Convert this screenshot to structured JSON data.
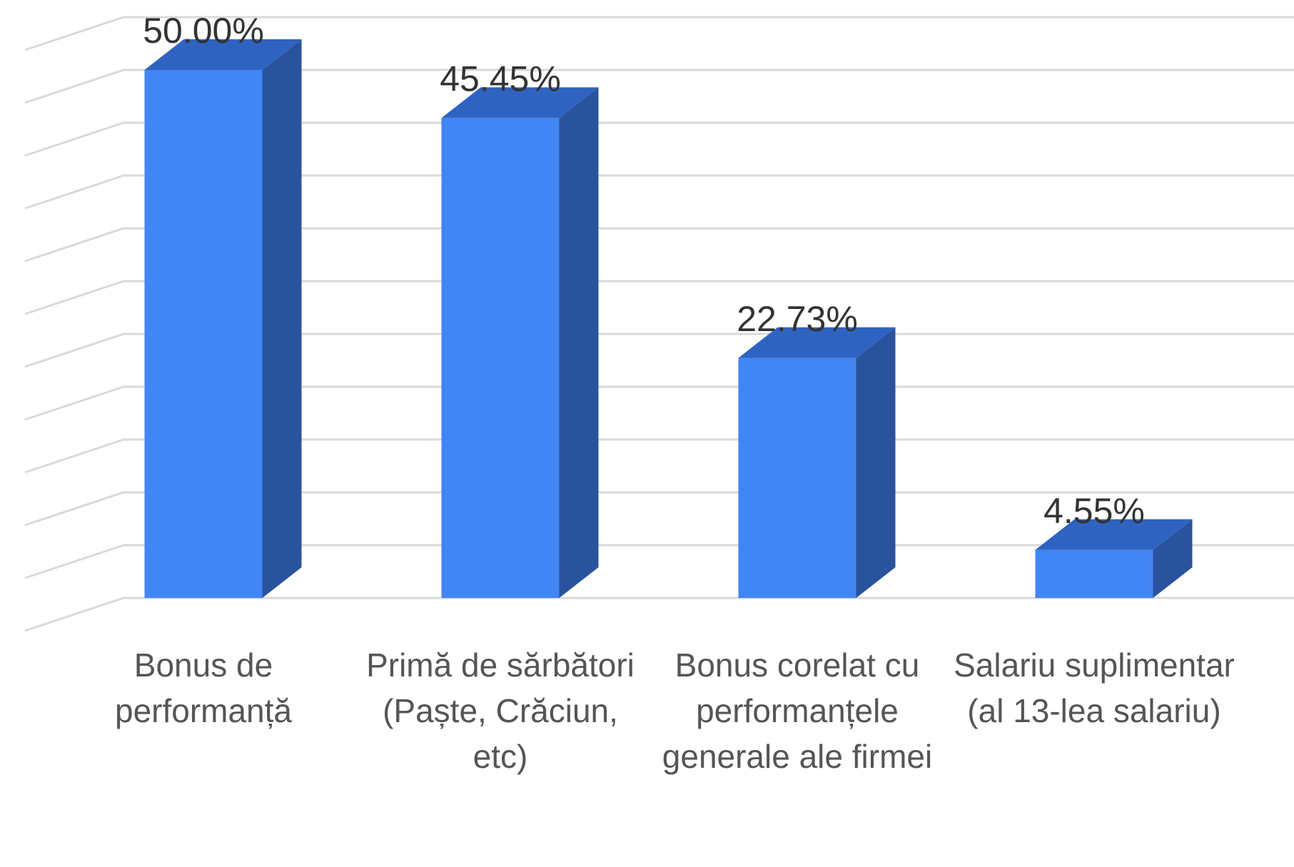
{
  "chart_data": {
    "type": "bar3d",
    "categories": [
      "Bonus de performanță",
      "Primă de sărbători (Paște, Crăciun, etc)",
      "Bonus corelat cu performanțele generale ale firmei",
      "Salariu suplimentar (al 13-lea salariu)"
    ],
    "values": [
      50,
      45.45,
      22.73,
      4.55
    ],
    "value_labels": [
      "50.00%",
      "45.45%",
      "22.73%",
      "4.55%"
    ],
    "color": "#4285f4",
    "ylim": [
      0,
      55
    ],
    "yticks": [
      0,
      5,
      10,
      15,
      20,
      25,
      30,
      35,
      40,
      45,
      50,
      55
    ],
    "grid": true
  }
}
